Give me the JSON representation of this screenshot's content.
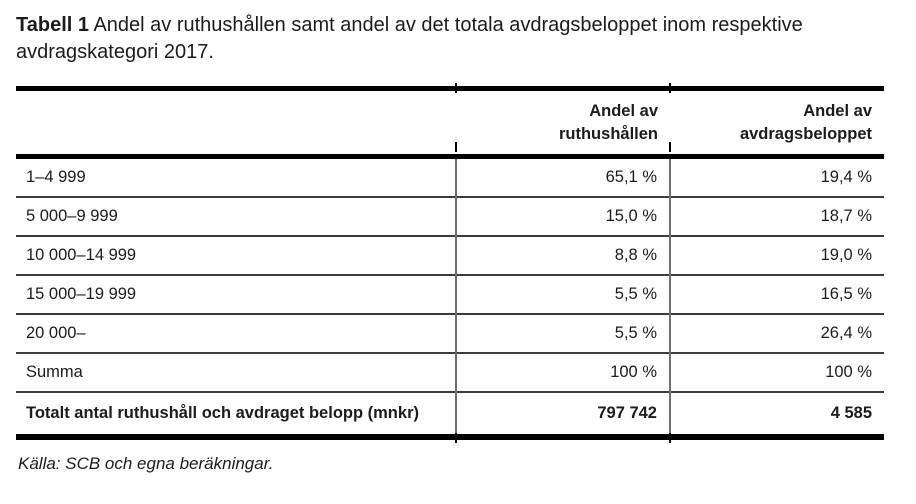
{
  "title": {
    "prefix": "Tabell 1",
    "text": "Andel av ruthushållen samt andel av det totala avdragsbeloppet inom respektive avdragskategori 2017."
  },
  "table": {
    "columns": [
      {
        "label": ""
      },
      {
        "label": "Andel av\nruthushållen"
      },
      {
        "label": "Andel av\navdragsbeloppet"
      }
    ],
    "rows": [
      {
        "cells": [
          "1–4 999",
          "65,1 %",
          "19,4 %"
        ],
        "is_total": false
      },
      {
        "cells": [
          "5 000–9 999",
          "15,0 %",
          "18,7 %"
        ],
        "is_total": false
      },
      {
        "cells": [
          "10 000–14 999",
          "8,8 %",
          "19,0 %"
        ],
        "is_total": false
      },
      {
        "cells": [
          "15 000–19 999",
          "5,5 %",
          "16,5 %"
        ],
        "is_total": false
      },
      {
        "cells": [
          "20 000–",
          "5,5 %",
          "26,4 %"
        ],
        "is_total": false
      },
      {
        "cells": [
          "Summa",
          "100 %",
          "100 %"
        ],
        "is_total": false
      },
      {
        "cells": [
          "Totalt antal ruthushåll och avdraget belopp (mnkr)",
          "797 742",
          "4 585"
        ],
        "is_total": true
      }
    ]
  },
  "source": "Källa: SCB och egna beräkningar."
}
